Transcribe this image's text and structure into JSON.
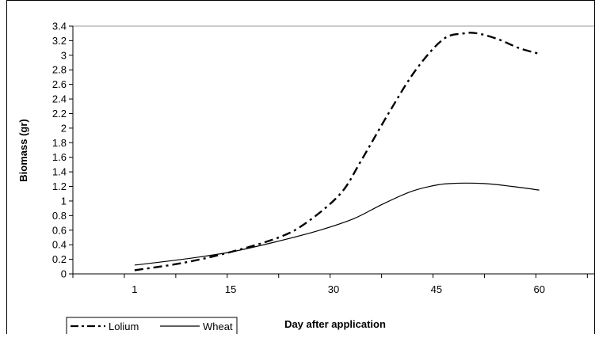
{
  "chart_data": {
    "type": "line",
    "title": "",
    "xlabel": "Day after application",
    "ylabel": "Biomass (gr)",
    "xlim": [
      -8,
      68
    ],
    "ylim": [
      0,
      3.4
    ],
    "x_ticks": [
      1,
      15,
      30,
      45,
      60
    ],
    "y_ticks": [
      0,
      0.2,
      0.4,
      0.6,
      0.8,
      1,
      1.2,
      1.4,
      1.6,
      1.8,
      2,
      2.2,
      2.4,
      2.6,
      2.8,
      3,
      3.2,
      3.4
    ],
    "y_tick_labels": [
      "0",
      "0.2",
      "0.4",
      "0.6",
      "0.8",
      "1",
      "1.2",
      "1.4",
      "1.6",
      "1.8",
      "2",
      "2.2",
      "2.4",
      "2.6",
      "2.8",
      "3",
      "3.2",
      "3.4"
    ],
    "grid": false,
    "legend_position": "bottom-left",
    "series": [
      {
        "name": "Lolium",
        "line_style": "dash-dot",
        "color": "#000000",
        "points": [
          [
            1,
            0.05
          ],
          [
            8,
            0.15
          ],
          [
            15,
            0.3
          ],
          [
            22,
            0.5
          ],
          [
            26,
            0.7
          ],
          [
            31,
            1.1
          ],
          [
            34,
            1.55
          ],
          [
            38,
            2.2
          ],
          [
            42,
            2.8
          ],
          [
            46,
            3.22
          ],
          [
            49,
            3.3
          ],
          [
            51,
            3.3
          ],
          [
            54,
            3.22
          ],
          [
            57,
            3.1
          ],
          [
            60,
            3.02
          ]
        ]
      },
      {
        "name": "Wheat",
        "line_style": "solid",
        "color": "#000000",
        "points": [
          [
            1,
            0.12
          ],
          [
            8,
            0.2
          ],
          [
            15,
            0.3
          ],
          [
            22,
            0.45
          ],
          [
            28,
            0.6
          ],
          [
            33,
            0.76
          ],
          [
            37,
            0.95
          ],
          [
            41,
            1.12
          ],
          [
            44,
            1.2
          ],
          [
            47,
            1.24
          ],
          [
            52,
            1.24
          ],
          [
            56,
            1.2
          ],
          [
            60,
            1.15
          ]
        ]
      }
    ]
  }
}
